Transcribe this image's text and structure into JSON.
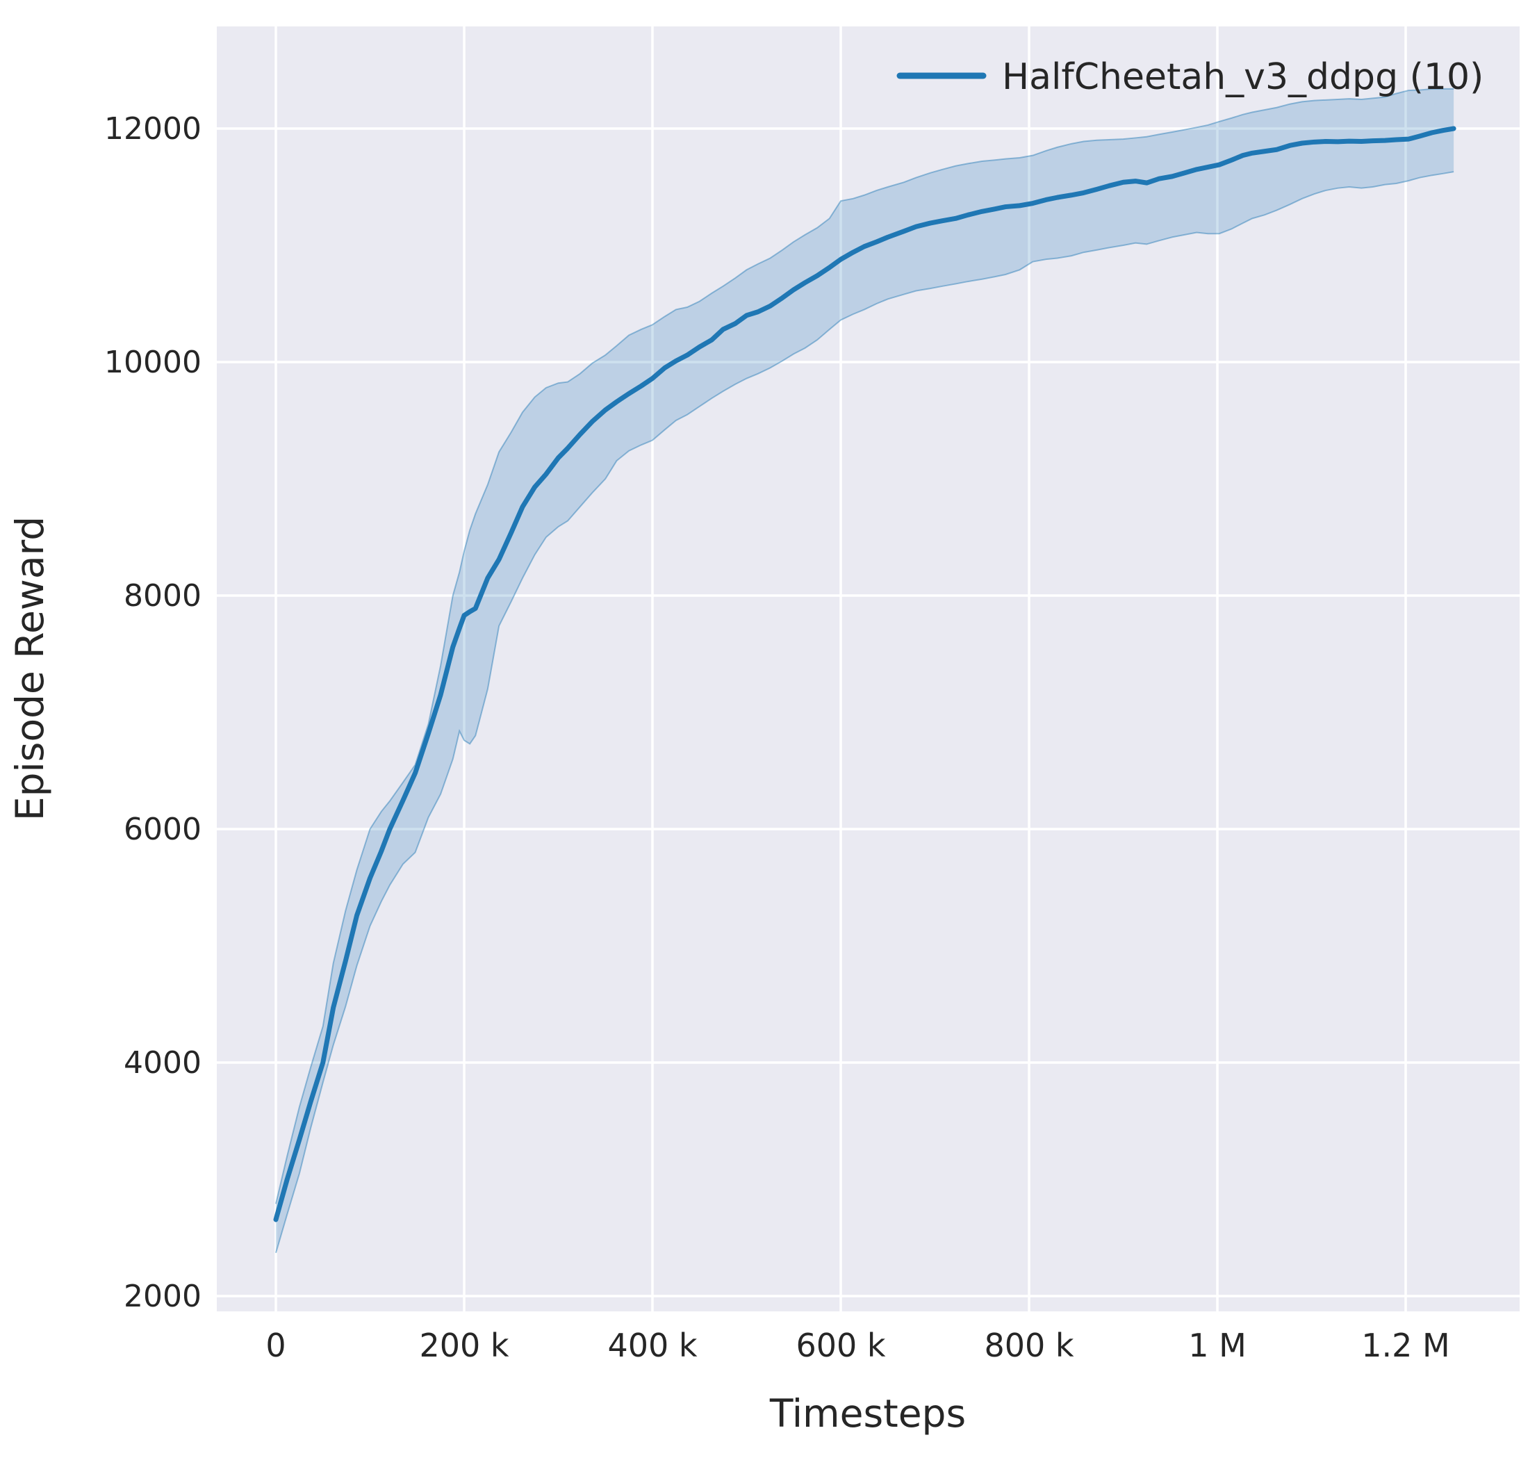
{
  "chart_data": {
    "type": "line",
    "title": "",
    "xlabel": "Timesteps",
    "ylabel": "Episode Reward",
    "grid": true,
    "legend_position": "upper right",
    "legend": [
      {
        "label": "HalfCheetah_v3_ddpg (10)",
        "color": "#1f77b4"
      }
    ],
    "colors": {
      "figure_background": "#ffffff",
      "axes_background": "#eaeaf2",
      "gridline": "#ffffff",
      "line": "#1f77b4",
      "band_fill": "rgba(31,119,180,0.22)",
      "band_edge": "rgba(31,119,180,0.45)",
      "text": "#262626"
    },
    "x_ticks": [
      {
        "value_k": 0,
        "label": "0"
      },
      {
        "value_k": 200,
        "label": "200 k"
      },
      {
        "value_k": 400,
        "label": "400 k"
      },
      {
        "value_k": 600,
        "label": "600 k"
      },
      {
        "value_k": 800,
        "label": "800 k"
      },
      {
        "value_k": 1000,
        "label": "1 M"
      },
      {
        "value_k": 1200,
        "label": "1.2 M"
      }
    ],
    "y_ticks": [
      {
        "value": 2000,
        "label": "2000"
      },
      {
        "value": 4000,
        "label": "4000"
      },
      {
        "value": 6000,
        "label": "6000"
      },
      {
        "value": 8000,
        "label": "8000"
      },
      {
        "value": 10000,
        "label": "10000"
      },
      {
        "value": 12000,
        "label": "12000"
      }
    ],
    "xlim_k": [
      -62.7,
      1321
    ],
    "ylim": [
      1870,
      12875
    ],
    "series": [
      {
        "name": "HalfCheetah_v3_ddpg (10)",
        "n_runs": 10,
        "x_k": [
          0,
          12,
          25,
          37,
          50,
          61,
          74,
          86,
          100,
          112,
          121,
          135,
          148,
          162,
          175,
          188,
          195,
          200,
          206,
          212,
          225,
          237,
          250,
          262,
          275,
          287,
          300,
          310,
          323,
          336,
          350,
          362,
          375,
          388,
          400,
          413,
          425,
          437,
          450,
          463,
          475,
          488,
          500,
          512,
          525,
          538,
          550,
          562,
          575,
          588,
          600,
          613,
          625,
          638,
          650,
          667,
          680,
          695,
          708,
          722,
          735,
          750,
          763,
          775,
          790,
          804,
          818,
          830,
          845,
          858,
          872,
          885,
          900,
          913,
          925,
          938,
          952,
          965,
          978,
          990,
          1002,
          1015,
          1027,
          1037,
          1050,
          1063,
          1077,
          1090,
          1103,
          1115,
          1128,
          1140,
          1153,
          1165,
          1178,
          1190,
          1203,
          1215,
          1228,
          1240,
          1251
        ],
        "mean": [
          2655,
          3000,
          3340,
          3665,
          4000,
          4470,
          4870,
          5260,
          5580,
          5810,
          6000,
          6245,
          6480,
          6820,
          7150,
          7560,
          7720,
          7830,
          7862,
          7890,
          8150,
          8310,
          8540,
          8760,
          8930,
          9040,
          9180,
          9262,
          9380,
          9490,
          9590,
          9660,
          9730,
          9795,
          9860,
          9950,
          10010,
          10060,
          10130,
          10190,
          10280,
          10330,
          10400,
          10430,
          10480,
          10550,
          10620,
          10680,
          10740,
          10810,
          10880,
          10940,
          10990,
          11030,
          11070,
          11120,
          11160,
          11190,
          11210,
          11230,
          11260,
          11290,
          11310,
          11330,
          11340,
          11360,
          11390,
          11410,
          11430,
          11450,
          11480,
          11510,
          11540,
          11550,
          11535,
          11570,
          11590,
          11620,
          11650,
          11670,
          11690,
          11730,
          11770,
          11790,
          11805,
          11820,
          11855,
          11875,
          11885,
          11890,
          11888,
          11892,
          11890,
          11895,
          11898,
          11905,
          11910,
          11935,
          11965,
          11985,
          12000
        ],
        "lower": [
          2370,
          2700,
          3050,
          3440,
          3830,
          4150,
          4480,
          4830,
          5170,
          5380,
          5520,
          5700,
          5800,
          6100,
          6300,
          6600,
          6840,
          6760,
          6730,
          6800,
          7200,
          7740,
          7950,
          8150,
          8350,
          8500,
          8590,
          8640,
          8760,
          8880,
          9000,
          9155,
          9240,
          9290,
          9330,
          9420,
          9500,
          9550,
          9620,
          9690,
          9750,
          9810,
          9860,
          9900,
          9950,
          10010,
          10070,
          10120,
          10190,
          10280,
          10360,
          10410,
          10450,
          10500,
          10540,
          10580,
          10610,
          10630,
          10650,
          10670,
          10690,
          10710,
          10730,
          10750,
          10790,
          10860,
          10880,
          10890,
          10910,
          10940,
          10960,
          10980,
          11000,
          11020,
          11010,
          11040,
          11070,
          11090,
          11110,
          11100,
          11100,
          11140,
          11190,
          11230,
          11260,
          11300,
          11350,
          11400,
          11440,
          11470,
          11490,
          11500,
          11490,
          11500,
          11520,
          11530,
          11553,
          11580,
          11600,
          11615,
          11630
        ],
        "upper": [
          2790,
          3200,
          3620,
          3960,
          4310,
          4850,
          5300,
          5650,
          6000,
          6150,
          6240,
          6400,
          6550,
          6900,
          7400,
          8000,
          8200,
          8380,
          8560,
          8700,
          8950,
          9230,
          9400,
          9570,
          9700,
          9780,
          9820,
          9830,
          9900,
          9990,
          10060,
          10140,
          10230,
          10280,
          10320,
          10390,
          10450,
          10470,
          10520,
          10590,
          10650,
          10720,
          10790,
          10840,
          10890,
          10960,
          11030,
          11090,
          11150,
          11230,
          11380,
          11400,
          11430,
          11470,
          11500,
          11540,
          11580,
          11620,
          11650,
          11680,
          11700,
          11720,
          11730,
          11740,
          11750,
          11770,
          11810,
          11840,
          11870,
          11890,
          11900,
          11905,
          11910,
          11920,
          11930,
          11950,
          11970,
          11990,
          12010,
          12030,
          12060,
          12090,
          12120,
          12140,
          12160,
          12180,
          12210,
          12230,
          12240,
          12245,
          12250,
          12255,
          12250,
          12260,
          12270,
          12300,
          12327,
          12330,
          12340,
          12340,
          12340
        ]
      }
    ]
  }
}
